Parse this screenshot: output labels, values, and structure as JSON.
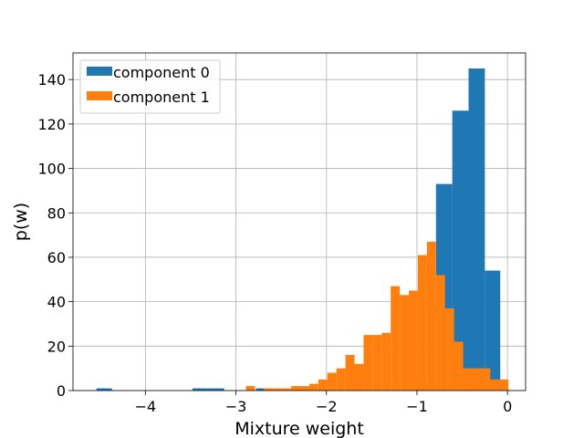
{
  "chart_data": {
    "type": "bar",
    "title": "",
    "xlabel": "Mixture weight",
    "ylabel": "p(w)",
    "xlim": [
      -4.8,
      0.2
    ],
    "ylim": [
      0,
      152
    ],
    "xticks": [
      -4,
      -3,
      -2,
      -1,
      0
    ],
    "xtick_labels": [
      "−4",
      "−3",
      "−2",
      "−1",
      "0"
    ],
    "yticks": [
      0,
      20,
      40,
      60,
      80,
      100,
      120,
      140
    ],
    "ytick_labels": [
      "0",
      "20",
      "40",
      "60",
      "80",
      "100",
      "120",
      "140"
    ],
    "grid": true,
    "legend_position": "upper-left",
    "series": [
      {
        "name": "component 0",
        "color": "#1f77b4",
        "bins": [
          {
            "x0": -4.54,
            "x1": -4.37,
            "count": 1
          },
          {
            "x0": -3.48,
            "x1": -3.31,
            "count": 1
          },
          {
            "x0": -3.31,
            "x1": -3.13,
            "count": 1
          },
          {
            "x0": -2.78,
            "x1": -2.6,
            "count": 1
          },
          {
            "x0": -1.02,
            "x1": -0.85,
            "count": 2
          },
          {
            "x0": -0.79,
            "x1": -0.61,
            "count": 93
          },
          {
            "x0": -0.61,
            "x1": -0.43,
            "count": 126
          },
          {
            "x0": -0.43,
            "x1": -0.25,
            "count": 145
          },
          {
            "x0": -0.25,
            "x1": -0.08,
            "count": 54
          }
        ]
      },
      {
        "name": "component 1",
        "color": "#ff7f0e",
        "bins": [
          {
            "x0": -2.89,
            "x1": -2.79,
            "count": 2
          },
          {
            "x0": -2.69,
            "x1": -2.59,
            "count": 1
          },
          {
            "x0": -2.59,
            "x1": -2.49,
            "count": 1
          },
          {
            "x0": -2.49,
            "x1": -2.39,
            "count": 1
          },
          {
            "x0": -2.39,
            "x1": -2.29,
            "count": 2
          },
          {
            "x0": -2.29,
            "x1": -2.19,
            "count": 2
          },
          {
            "x0": -2.19,
            "x1": -2.09,
            "count": 3
          },
          {
            "x0": -2.09,
            "x1": -1.99,
            "count": 5
          },
          {
            "x0": -1.99,
            "x1": -1.89,
            "count": 8
          },
          {
            "x0": -1.89,
            "x1": -1.79,
            "count": 10
          },
          {
            "x0": -1.79,
            "x1": -1.69,
            "count": 16
          },
          {
            "x0": -1.69,
            "x1": -1.59,
            "count": 12
          },
          {
            "x0": -1.59,
            "x1": -1.49,
            "count": 25
          },
          {
            "x0": -1.49,
            "x1": -1.39,
            "count": 25
          },
          {
            "x0": -1.39,
            "x1": -1.29,
            "count": 26
          },
          {
            "x0": -1.29,
            "x1": -1.19,
            "count": 47
          },
          {
            "x0": -1.19,
            "x1": -1.09,
            "count": 43
          },
          {
            "x0": -1.09,
            "x1": -0.99,
            "count": 45
          },
          {
            "x0": -0.99,
            "x1": -0.89,
            "count": 61
          },
          {
            "x0": -0.89,
            "x1": -0.79,
            "count": 67
          },
          {
            "x0": -0.79,
            "x1": -0.69,
            "count": 52
          },
          {
            "x0": -0.69,
            "x1": -0.59,
            "count": 37
          },
          {
            "x0": -0.59,
            "x1": -0.49,
            "count": 22
          },
          {
            "x0": -0.49,
            "x1": -0.39,
            "count": 10
          },
          {
            "x0": -0.39,
            "x1": -0.29,
            "count": 10
          },
          {
            "x0": -0.29,
            "x1": -0.19,
            "count": 10
          },
          {
            "x0": -0.19,
            "x1": -0.09,
            "count": 5
          },
          {
            "x0": -0.09,
            "x1": 0.01,
            "count": 5
          }
        ]
      }
    ]
  }
}
